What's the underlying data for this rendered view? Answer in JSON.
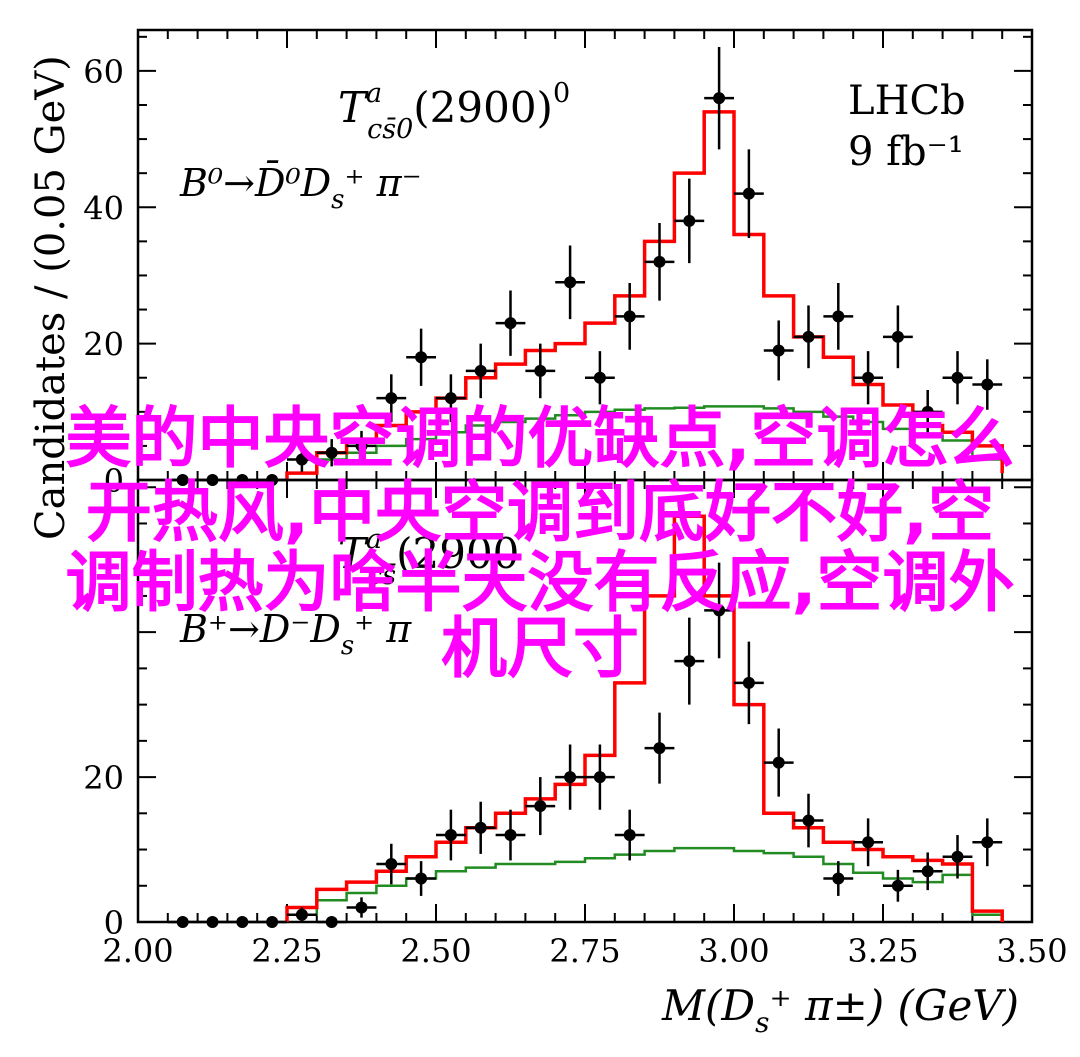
{
  "chart_data": [
    {
      "type": "histogram",
      "panel": "top",
      "title_main": "T",
      "title_sup": "a",
      "title_sub": "cs̄0",
      "title_tail": "(2900)",
      "title_tail_sup": "0",
      "decay": "B⁰→D̄⁰D",
      "decay_sub": "s",
      "decay_tail": "⁺ π⁻",
      "experiment": "LHCb",
      "luminosity": "9 fb⁻¹",
      "ylabel": "Candidates / (0.05 GeV)",
      "xlim": [
        2.0,
        3.5
      ],
      "ylim": [
        0,
        66
      ],
      "yticks": [
        0,
        20,
        40,
        60
      ],
      "ytick_labels": [
        "0",
        "20",
        "40",
        "60"
      ],
      "bin_edges": [
        2.25,
        2.3,
        2.35,
        2.4,
        2.45,
        2.5,
        2.55,
        2.6,
        2.65,
        2.7,
        2.75,
        2.8,
        2.85,
        2.9,
        2.95,
        3.0,
        3.05,
        3.1,
        3.15,
        3.2,
        3.25,
        3.3,
        3.35,
        3.4,
        3.45
      ],
      "fit_total": [
        1,
        4,
        6,
        8,
        10,
        12,
        15,
        17,
        19,
        20,
        23,
        27,
        35,
        45,
        54,
        36,
        27,
        21,
        18,
        14,
        11,
        8,
        7,
        5,
        1
      ],
      "fit_background": [
        1,
        3,
        4,
        5,
        6,
        7,
        8,
        8.5,
        9,
        9.5,
        10,
        10.3,
        10.5,
        10.6,
        10.8,
        10.8,
        10.5,
        10,
        9.3,
        8.5,
        7.5,
        6.5,
        5.8,
        3,
        1
      ],
      "data_points": {
        "x": [
          2.075,
          2.125,
          2.175,
          2.225,
          2.275,
          2.325,
          2.375,
          2.425,
          2.475,
          2.525,
          2.575,
          2.625,
          2.675,
          2.725,
          2.775,
          2.825,
          2.875,
          2.925,
          2.975,
          3.025,
          3.075,
          3.125,
          3.175,
          3.225,
          3.275,
          3.325,
          3.375,
          3.425
        ],
        "y": [
          0,
          0,
          0,
          0,
          3,
          4,
          5,
          12,
          18,
          12,
          16,
          23,
          16,
          29,
          15,
          24,
          32,
          38,
          56,
          42,
          19,
          21,
          24,
          15,
          21,
          10,
          15,
          14
        ],
        "yerr": [
          0,
          0,
          0,
          0,
          1.8,
          2,
          2.2,
          3.5,
          4.2,
          3.5,
          4,
          4.8,
          4,
          5.4,
          3.9,
          4.9,
          5.7,
          6.2,
          7.5,
          6.5,
          4.4,
          4.6,
          4.9,
          3.9,
          4.6,
          3.2,
          3.9,
          3.7
        ]
      }
    },
    {
      "type": "histogram",
      "panel": "bottom",
      "title_main": "T",
      "title_sup": "a",
      "title_sub": "cs̄",
      "title_tail": "(2900",
      "title_tail_sup": "",
      "decay": "B⁺→D⁻D",
      "decay_sub": "s",
      "decay_tail": "⁺ π",
      "xlabel_main": "M(D",
      "xlabel_sub": "s",
      "xlabel_tail": "⁺ π±) (GeV)",
      "xlim": [
        2.0,
        3.5
      ],
      "ylim": [
        0,
        61
      ],
      "yticks": [
        0,
        20
      ],
      "ytick_labels": [
        "0",
        "20"
      ],
      "xticks": [
        2.0,
        2.25,
        2.5,
        2.75,
        3.0,
        3.25,
        3.5
      ],
      "xtick_labels": [
        "2.00",
        "2.25",
        "2.50",
        "2.75",
        "3.00",
        "3.25",
        "3.50"
      ],
      "bin_edges": [
        2.25,
        2.3,
        2.35,
        2.4,
        2.45,
        2.5,
        2.55,
        2.6,
        2.65,
        2.7,
        2.75,
        2.8,
        2.85,
        2.9,
        2.95,
        3.0,
        3.05,
        3.1,
        3.15,
        3.2,
        3.25,
        3.3,
        3.35,
        3.4,
        3.45
      ],
      "fit_total": [
        2,
        4.5,
        5.5,
        7,
        9,
        11,
        13,
        15,
        17,
        19,
        23,
        33,
        45,
        56,
        45,
        30,
        15,
        13,
        11,
        10,
        9,
        8.5,
        8,
        1.5,
        0
      ],
      "fit_background": [
        1,
        3,
        4,
        5,
        6,
        7,
        7.5,
        8,
        8,
        8.3,
        8.8,
        9.3,
        9.8,
        10.2,
        10.2,
        9.8,
        9.5,
        9,
        8,
        6.8,
        6,
        5.5,
        6.5,
        1,
        0
      ],
      "data_points": {
        "x": [
          2.075,
          2.125,
          2.175,
          2.225,
          2.275,
          2.325,
          2.375,
          2.425,
          2.475,
          2.525,
          2.575,
          2.625,
          2.675,
          2.725,
          2.775,
          2.825,
          2.875,
          2.925,
          2.975,
          3.025,
          3.075,
          3.125,
          3.175,
          3.225,
          3.275,
          3.325,
          3.375,
          3.425
        ],
        "y": [
          0,
          0,
          0,
          0,
          1,
          0,
          2,
          8,
          6,
          12,
          13,
          12,
          16,
          20,
          20,
          12,
          24,
          36,
          43,
          33,
          22,
          14,
          6,
          11,
          5,
          7,
          9,
          11
        ],
        "yerr": [
          0,
          0,
          0,
          0,
          1,
          0,
          1.4,
          2.8,
          2.4,
          3.5,
          3.6,
          3.5,
          4,
          4.5,
          4.5,
          3.5,
          4.9,
          6,
          6.6,
          5.7,
          4.7,
          3.7,
          2.4,
          3.3,
          2.2,
          2.6,
          3,
          3.3
        ]
      }
    }
  ],
  "overlay_text": {
    "line1": "美的中央空调的优缺点,空调怎么",
    "line2": "开热风,中央空调到底好不好,空",
    "line3": "调制热为啥半天没有反应,空调外",
    "line4": "机尺寸"
  },
  "colors": {
    "fit_total": "#ff0000",
    "fit_background": "#228B22",
    "data": "#000000",
    "overlay": "#ff00ff"
  }
}
